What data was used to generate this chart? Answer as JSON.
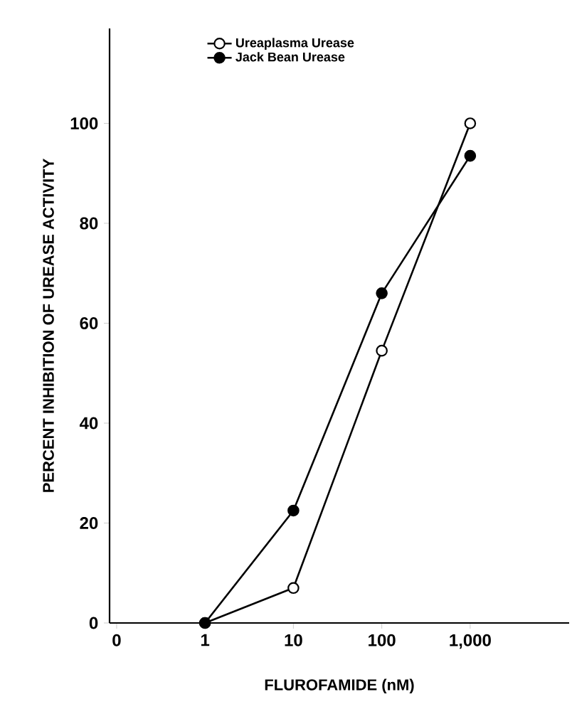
{
  "chart_data": {
    "type": "line",
    "xlabel": "FLUROFAMIDE (nM)",
    "ylabel": "PERCENT INHIBITION OF UREASE ACTIVITY",
    "categories": [
      "0",
      "1",
      "10",
      "100",
      "1,000"
    ],
    "series": [
      {
        "name": "Ureaplasma Urease",
        "color": "#ffffff",
        "values": [
          null,
          0,
          7,
          54.5,
          100
        ]
      },
      {
        "name": "Jack Bean Urease",
        "color": "#000000",
        "values": [
          null,
          0,
          22.5,
          66,
          93.5
        ]
      }
    ],
    "ylim": [
      0,
      119
    ],
    "yticks": [
      0,
      20,
      40,
      60,
      80,
      100
    ],
    "marker": "circle",
    "line_style": "solid",
    "grid": false,
    "legend": "top left"
  }
}
